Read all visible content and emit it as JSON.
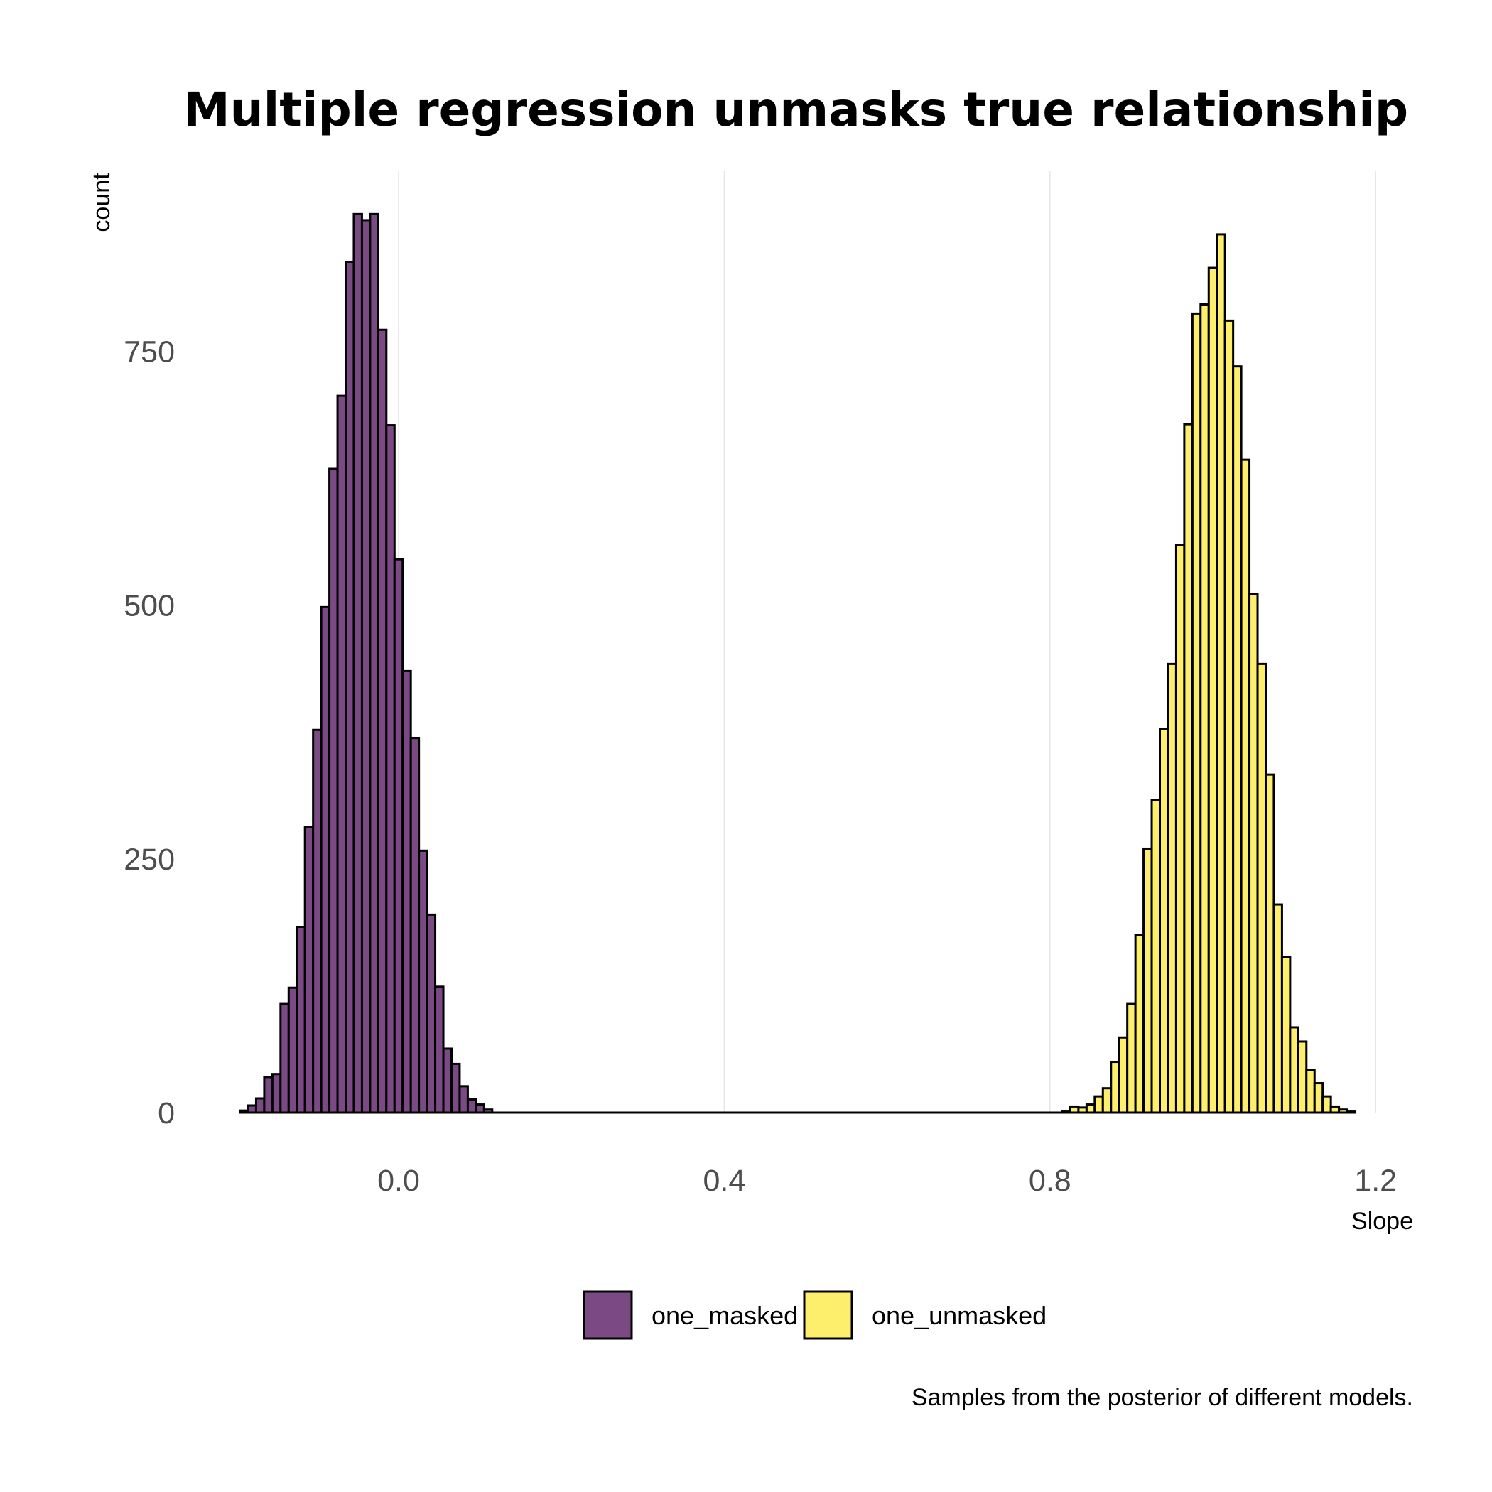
{
  "chart_data": {
    "type": "bar",
    "title": "Multiple regression unmasks true relationship",
    "xlabel": "Slope",
    "ylabel": "count",
    "caption": "Samples from the posterior of different models.",
    "xlim": [
      -0.2,
      1.24
    ],
    "ylim": [
      0,
      900
    ],
    "x_ticks": [
      0.0,
      0.4,
      0.8,
      1.2
    ],
    "x_tick_labels": [
      "0.0",
      "0.4",
      "0.8",
      "1.2"
    ],
    "y_ticks": [
      0,
      250,
      500,
      750
    ],
    "y_tick_labels": [
      "0",
      "250",
      "500",
      "750"
    ],
    "grid": "vertical major lines",
    "legend_position": "bottom",
    "bin_width": 0.01,
    "series": [
      {
        "name": "one_masked",
        "color": "#7b4a85",
        "bin_start": -0.195,
        "values": [
          2,
          7,
          14,
          35,
          38,
          107,
          123,
          183,
          281,
          377,
          498,
          634,
          706,
          838,
          885,
          879,
          885,
          771,
          677,
          545,
          435,
          369,
          258,
          195,
          124,
          63,
          48,
          26,
          13,
          8,
          3,
          0
        ]
      },
      {
        "name": "one_unmasked",
        "color": "#fdee6b",
        "bin_start": 0.815,
        "values": [
          1,
          6,
          5,
          8,
          16,
          24,
          50,
          74,
          107,
          175,
          260,
          308,
          378,
          442,
          559,
          678,
          787,
          796,
          832,
          865,
          780,
          735,
          643,
          511,
          442,
          333,
          205,
          153,
          84,
          70,
          42,
          29,
          16,
          6,
          3,
          1
        ]
      }
    ]
  }
}
